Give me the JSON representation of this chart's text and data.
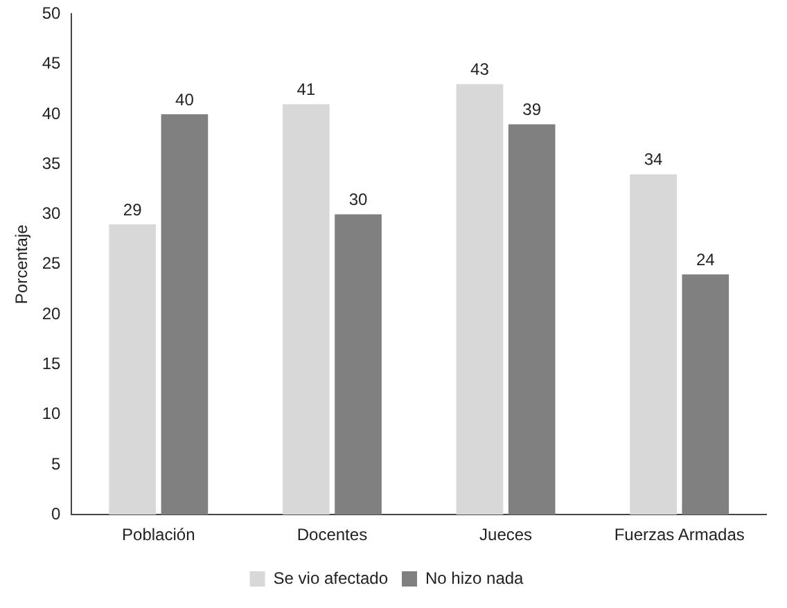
{
  "chart_data": {
    "type": "bar",
    "ylabel": "Porcentaje",
    "categories": [
      "Población",
      "Docentes",
      "Jueces",
      "Fuerzas Armadas"
    ],
    "series": [
      {
        "name": "Se vio afectado",
        "color": "#d8d8d8",
        "values": [
          29,
          41,
          43,
          34
        ]
      },
      {
        "name": "No hizo nada",
        "color": "#808080",
        "values": [
          40,
          30,
          39,
          24
        ]
      }
    ],
    "ylim": [
      0,
      50
    ],
    "yticks": [
      0,
      5,
      10,
      15,
      20,
      25,
      30,
      35,
      40,
      45,
      50
    ],
    "grid": false,
    "legend": "bottom",
    "data_labels": true
  }
}
